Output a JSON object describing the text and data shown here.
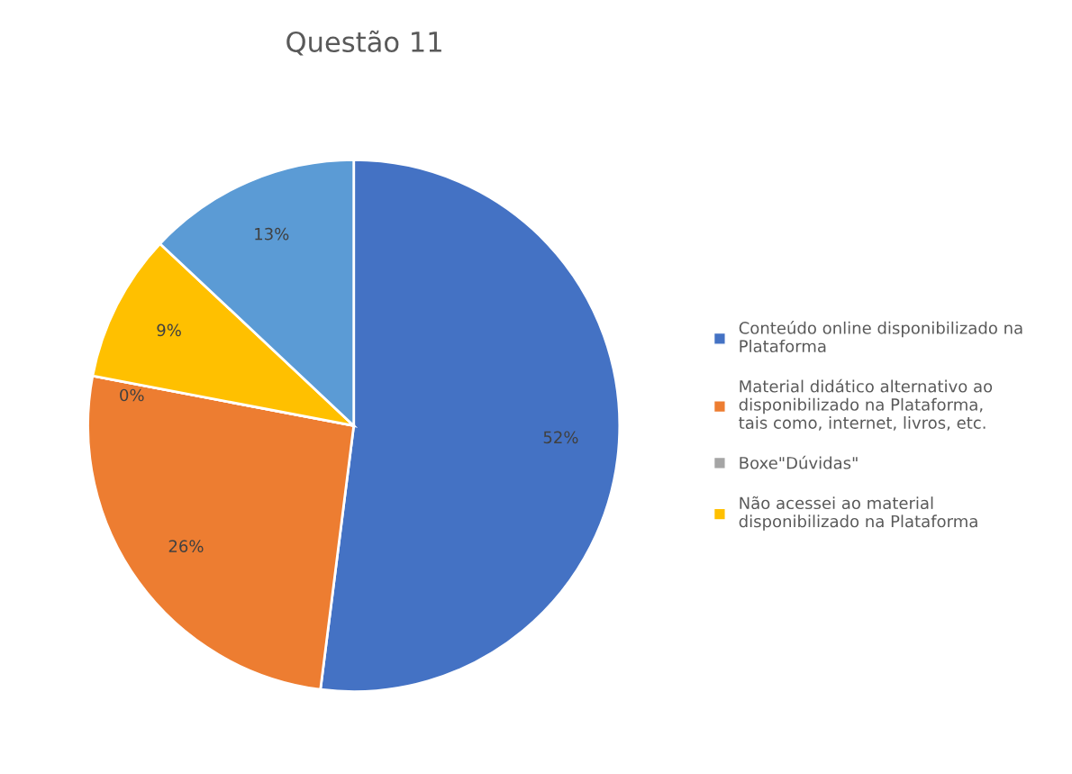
{
  "chart_data": {
    "type": "pie",
    "title": "Questão 11",
    "categories": [
      "Conteúdo online disponibilizado na Plataforma",
      "Material didático alternativo ao disponibilizado na Plataforma, tais como, internet, livros, etc.",
      "Boxe\"Dúvidas\"",
      "Não acessei ao material disponibilizado na Plataforma",
      null
    ],
    "values": [
      52,
      26,
      0,
      9,
      13
    ],
    "colors": [
      "#4472c4",
      "#ed7d31",
      "#a5a5a5",
      "#ffc000",
      "#5b9bd5"
    ],
    "value_labels": [
      "52%",
      "26%",
      "0%",
      "9%",
      "13%"
    ],
    "legend": "right"
  }
}
